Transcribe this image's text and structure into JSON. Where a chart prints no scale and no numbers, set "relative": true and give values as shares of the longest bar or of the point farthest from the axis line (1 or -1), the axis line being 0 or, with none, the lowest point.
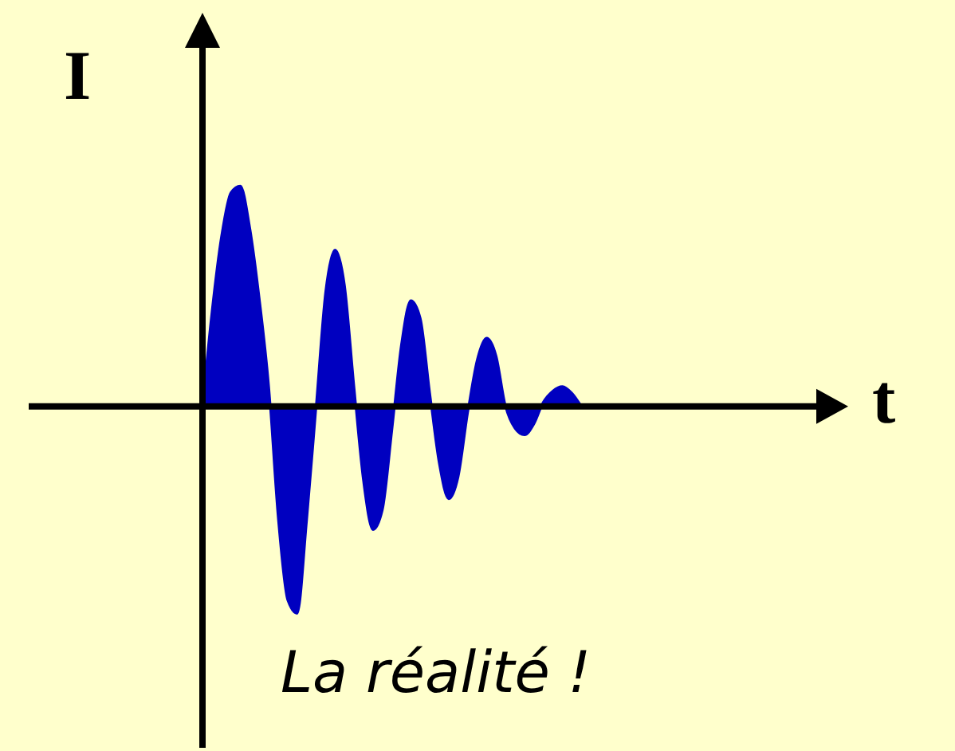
{
  "chart_data": {
    "type": "area",
    "relative": true,
    "xlabel": "t",
    "ylabel": "I",
    "annotations": [
      "La réalité !"
    ],
    "color": "#0000c0",
    "categories": [
      null,
      null,
      null,
      null,
      null,
      null,
      null,
      null,
      null,
      null,
      null,
      null,
      null,
      null,
      null,
      null,
      null,
      null,
      null,
      null,
      null,
      null,
      null,
      null,
      null,
      null,
      null,
      null,
      null,
      null,
      null,
      null,
      null,
      null,
      null,
      null,
      null,
      null,
      null,
      null,
      null,
      null,
      null,
      null,
      null,
      null,
      null,
      null,
      null,
      null,
      null,
      null,
      null,
      null,
      null,
      null,
      null,
      null,
      null,
      null,
      null,
      null,
      null,
      null,
      null,
      null,
      null,
      null
    ],
    "values": [
      0,
      0.43,
      0.77,
      0.97,
      1,
      0.81,
      0.49,
      0.09,
      -0.51,
      -0.88,
      -0.94,
      -0.52,
      0,
      0.52,
      0.71,
      0.55,
      0.09,
      -0.34,
      -0.56,
      -0.47,
      -0.11,
      0.28,
      0.48,
      0.4,
      0.06,
      -0.26,
      -0.42,
      -0.32,
      -0.03,
      0.21,
      0.31,
      0.23,
      0,
      -0.1,
      -0.13,
      -0.08,
      0.02,
      0.07,
      0.09,
      0.06,
      0,
      null,
      null,
      null,
      null,
      null,
      null,
      null,
      null,
      null,
      null,
      null,
      null,
      null,
      null,
      null,
      null,
      null,
      null,
      null,
      null,
      null,
      null,
      null,
      null,
      null,
      null,
      null
    ]
  }
}
